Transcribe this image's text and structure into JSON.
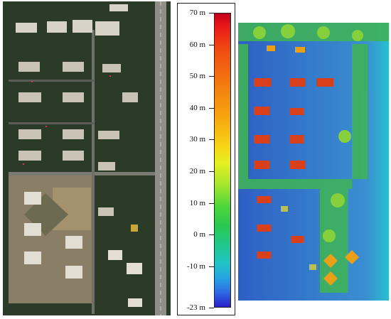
{
  "legend": {
    "unit": "m",
    "min": -23,
    "max": 70,
    "ticks": [
      {
        "value": 70,
        "label": "70 m"
      },
      {
        "value": 60,
        "label": "60 m"
      },
      {
        "value": 50,
        "label": "50 m"
      },
      {
        "value": 40,
        "label": "40 m"
      },
      {
        "value": 30,
        "label": "30 m"
      },
      {
        "value": 20,
        "label": "20 m"
      },
      {
        "value": 10,
        "label": "10 m"
      },
      {
        "value": 0,
        "label": "0 m"
      },
      {
        "value": -10,
        "label": "-10 m"
      },
      {
        "value": -23,
        "label": "-23 m"
      }
    ]
  },
  "colors": {
    "vegetation": "#2f4a26",
    "road": "#8d8d86",
    "building_roof": "#d9d4c8",
    "dsm_low": "#2e5fc4",
    "dsm_mid": "#3fb86a",
    "dsm_high": "#d8401c"
  }
}
